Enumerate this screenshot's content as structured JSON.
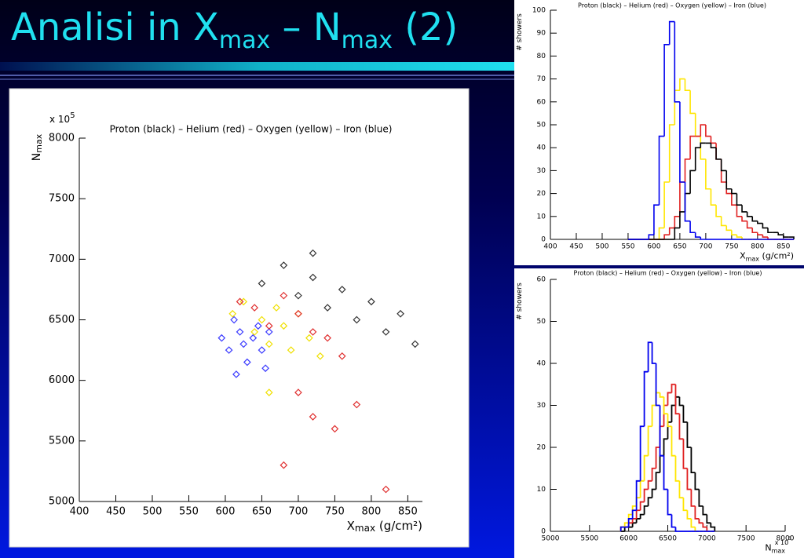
{
  "slide_title": [
    "Analisi in X",
    "max",
    " – N",
    "max",
    " (2)"
  ],
  "chart_data": [
    {
      "type": "scatter",
      "title": "Proton (black) – Helium (red) – Oxygen (yellow) – Iron (blue)",
      "xlabel": {
        "text": "X",
        "sub": "max",
        "unit": " (g/cm²)"
      },
      "ylabel": {
        "text": "N",
        "sub": "max"
      },
      "multiplier": {
        "text": "x 10",
        "exp": "5"
      },
      "xlim": [
        400,
        870
      ],
      "xticks": [
        400,
        450,
        500,
        550,
        600,
        650,
        700,
        750,
        800,
        850
      ],
      "ylim": [
        5000,
        8000
      ],
      "yticks": [
        5000,
        5500,
        6000,
        6500,
        7000,
        7500,
        8000
      ],
      "series": [
        {
          "color": "#3a3aff",
          "x": [
            595,
            605,
            612,
            620,
            625,
            630,
            638,
            645,
            650,
            655,
            660,
            615
          ],
          "y": [
            6350,
            6250,
            6500,
            6400,
            6300,
            6150,
            6350,
            6450,
            6250,
            6100,
            6400,
            6050
          ]
        },
        {
          "color": "#f0e000",
          "x": [
            610,
            625,
            640,
            650,
            660,
            670,
            680,
            690,
            700,
            715,
            730,
            660
          ],
          "y": [
            6550,
            6650,
            6400,
            6500,
            6300,
            6600,
            6450,
            6250,
            6550,
            6350,
            6200,
            5900
          ]
        },
        {
          "color": "#e03030",
          "x": [
            620,
            640,
            660,
            680,
            700,
            720,
            740,
            760,
            700,
            720,
            680,
            750,
            780,
            820
          ],
          "y": [
            6650,
            6600,
            6450,
            6700,
            6550,
            6400,
            6350,
            6200,
            5900,
            5700,
            5300,
            5600,
            5800,
            5100
          ]
        },
        {
          "color": "#333333",
          "x": [
            650,
            680,
            700,
            720,
            740,
            760,
            780,
            800,
            820,
            840,
            860,
            720
          ],
          "y": [
            6800,
            6950,
            6700,
            6850,
            6600,
            6750,
            6500,
            6650,
            6400,
            6550,
            6300,
            7050
          ]
        }
      ]
    },
    {
      "type": "histogram",
      "title": "Proton (black) – Helium (red) – Oxygen (yellow) – Iron (blue)",
      "xlabel": {
        "text": "X",
        "sub": "max",
        "unit": " (g/cm²)"
      },
      "ylabel": {
        "text": "# showers"
      },
      "xlim": [
        400,
        870
      ],
      "xticks": [
        400,
        450,
        500,
        550,
        600,
        650,
        700,
        750,
        800,
        850
      ],
      "ylim": [
        0,
        100
      ],
      "yticks": [
        0,
        10,
        20,
        30,
        40,
        50,
        60,
        70,
        80,
        90,
        100
      ],
      "bins": [
        550,
        560,
        570,
        580,
        590,
        600,
        610,
        620,
        630,
        640,
        650,
        660,
        670,
        680,
        690,
        700,
        710,
        720,
        730,
        740,
        750,
        760,
        770,
        780,
        790,
        800,
        810,
        820,
        830,
        840,
        850,
        860,
        870
      ],
      "series": [
        {
          "color": "#ffe600",
          "values": [
            0,
            0,
            0,
            0,
            0,
            0,
            5,
            25,
            50,
            65,
            70,
            65,
            55,
            45,
            35,
            22,
            15,
            10,
            6,
            4,
            2,
            1,
            0,
            0,
            0,
            0,
            0,
            0,
            0,
            0,
            0,
            0
          ]
        },
        {
          "color": "#e02020",
          "values": [
            0,
            0,
            0,
            0,
            0,
            0,
            0,
            2,
            5,
            10,
            25,
            35,
            45,
            45,
            50,
            45,
            42,
            35,
            25,
            20,
            15,
            10,
            8,
            5,
            3,
            2,
            1,
            0,
            0,
            0,
            0,
            0
          ]
        },
        {
          "color": "#000000",
          "values": [
            0,
            0,
            0,
            0,
            0,
            0,
            0,
            0,
            0,
            5,
            12,
            20,
            30,
            40,
            42,
            42,
            40,
            35,
            30,
            22,
            20,
            15,
            12,
            10,
            8,
            7,
            5,
            3,
            3,
            2,
            1,
            1
          ]
        },
        {
          "color": "#0000ee",
          "values": [
            0,
            0,
            0,
            0,
            2,
            15,
            45,
            85,
            95,
            60,
            25,
            8,
            3,
            1,
            0,
            0,
            0,
            0,
            0,
            0,
            0,
            0,
            0,
            0,
            0,
            0,
            0,
            0,
            0,
            0,
            0,
            0
          ]
        }
      ]
    },
    {
      "type": "histogram",
      "title": "Proton (black) – Helium (red) – Oxygen (yellow) – Iron (blue)",
      "xlabel": {
        "text": "N",
        "sub": "max"
      },
      "ylabel": {
        "text": "# showers"
      },
      "multiplier": {
        "text": "x 10",
        "exp": "5"
      },
      "xlim": [
        5000,
        8000
      ],
      "xticks": [
        5000,
        5500,
        6000,
        6500,
        7000,
        7500,
        8000
      ],
      "ylim": [
        0,
        60
      ],
      "yticks": [
        0,
        10,
        20,
        30,
        40,
        50,
        60
      ],
      "bins": [
        5900,
        5950,
        6000,
        6050,
        6100,
        6150,
        6200,
        6250,
        6300,
        6350,
        6400,
        6450,
        6500,
        6550,
        6600,
        6650,
        6700,
        6750,
        6800,
        6850,
        6900,
        6950,
        7000,
        7050,
        7100
      ],
      "series": [
        {
          "color": "#000000",
          "values": [
            0,
            1,
            1,
            2,
            3,
            4,
            6,
            8,
            10,
            14,
            18,
            22,
            26,
            30,
            32,
            30,
            26,
            20,
            14,
            10,
            6,
            4,
            2,
            1
          ]
        },
        {
          "color": "#e02020",
          "values": [
            1,
            1,
            2,
            3,
            5,
            7,
            10,
            12,
            15,
            20,
            25,
            30,
            33,
            35,
            28,
            22,
            15,
            10,
            6,
            3,
            2,
            1,
            0,
            0
          ]
        },
        {
          "color": "#ffe600",
          "values": [
            1,
            2,
            4,
            6,
            8,
            12,
            18,
            25,
            30,
            33,
            32,
            28,
            25,
            18,
            12,
            8,
            5,
            3,
            1,
            0,
            0,
            0,
            0,
            0
          ]
        },
        {
          "color": "#0000ee",
          "values": [
            1,
            1,
            3,
            5,
            12,
            25,
            38,
            45,
            40,
            30,
            18,
            10,
            4,
            1,
            0,
            0,
            0,
            0,
            0,
            0,
            0,
            0,
            0,
            0
          ]
        }
      ]
    }
  ]
}
